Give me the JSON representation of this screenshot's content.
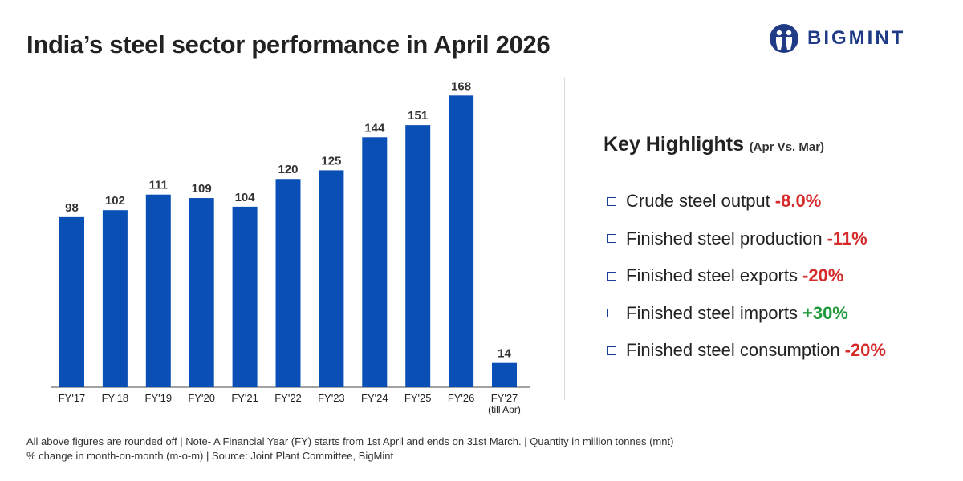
{
  "title": "India’s steel sector performance in April 2026",
  "logo": {
    "text": "BIGMINT",
    "color": "#1f3b86"
  },
  "chart_data": {
    "type": "bar",
    "categories": [
      "FY'17",
      "FY'18",
      "FY'19",
      "FY'20",
      "FY'21",
      "FY'22",
      "FY'23",
      "FY'24",
      "FY'25",
      "FY'26",
      "FY'27"
    ],
    "category_sublabels": [
      "",
      "",
      "",
      "",
      "",
      "",
      "",
      "",
      "",
      "",
      "(till Apr)"
    ],
    "values": [
      98,
      102,
      111,
      109,
      104,
      120,
      125,
      144,
      151,
      168,
      14
    ],
    "data_labels": [
      "98",
      "102",
      "111",
      "109",
      "104",
      "120",
      "125",
      "144",
      "151",
      "168",
      "14"
    ],
    "bar_color": "#0a4fb5",
    "ylim": [
      0,
      170
    ],
    "title": "",
    "xlabel": "",
    "ylabel": "",
    "grid": false,
    "legend": "none"
  },
  "highlights": {
    "title": "Key Highlights",
    "subtitle": "(Apr Vs. Mar)",
    "items": [
      {
        "label": "Crude steel output",
        "value": "-8.0%",
        "color": "#d62b2b"
      },
      {
        "label": "Finished steel production",
        "value": "-11%",
        "color": "#d62b2b"
      },
      {
        "label": "Finished steel exports",
        "value": "-20%",
        "color": "#d62b2b"
      },
      {
        "label": "Finished steel imports",
        "value": "+30%",
        "color": "#1f9a3c"
      },
      {
        "label": "Finished steel consumption",
        "value": "-20%",
        "color": "#d62b2b"
      }
    ]
  },
  "footer": {
    "line1": "All above figures are rounded off | Note- A Financial Year (FY) starts from 1st April and ends on 31st March. | Quantity in million tonnes (mnt)",
    "line2": "% change in month-on-month (m-o-m) | Source: Joint Plant Committee, BigMint"
  }
}
